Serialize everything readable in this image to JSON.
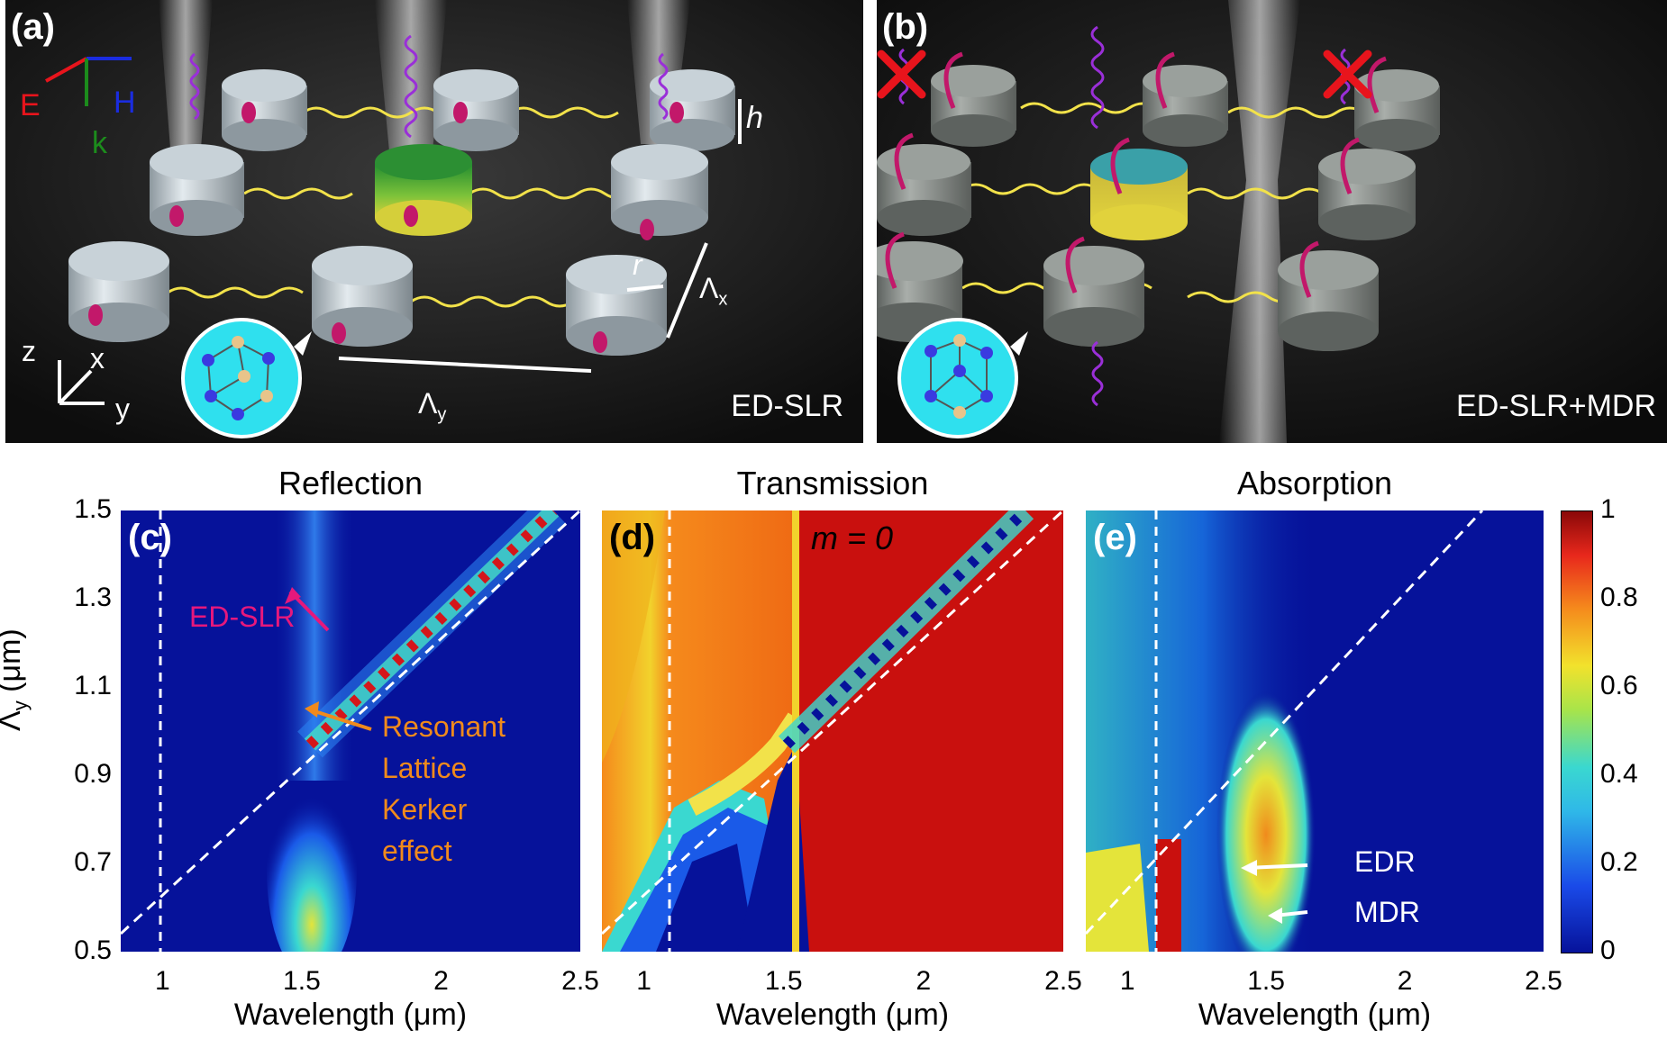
{
  "panel_a": {
    "label": "(a)",
    "mode": "ED-SLR",
    "axes": {
      "E": "E",
      "H": "H",
      "k": "k",
      "h": "h",
      "r": "r",
      "lx": "Λ",
      "lx_sub": "x",
      "ly": "Λ",
      "ly_sub": "y",
      "z": "z",
      "x": "x",
      "y": "y"
    }
  },
  "panel_b": {
    "label": "(b)",
    "mode": "ED-SLR+MDR"
  },
  "colors": {
    "yellow_wave": "#f2e24a",
    "purple_wave": "#9a2fd8",
    "cross": "#e8141c",
    "cylinder": "#b9c4cc",
    "cylinder_dark": "#8a8f8c",
    "inset_bg": "#2fe0ee",
    "arrow_pink": "#e6187c",
    "arrow_orange": "#f08a1c"
  },
  "chart_data": [
    {
      "type": "heatmap",
      "panel": "(c)",
      "title": "Reflection",
      "xlabel": "Wavelength (μm)",
      "ylabel": "Λ",
      "ylabel_sub": "y",
      "ylabel_unit": " (μm)",
      "xlim": [
        0.85,
        2.5
      ],
      "ylim": [
        0.5,
        1.5
      ],
      "xticks": [
        1,
        1.5,
        2,
        2.5
      ],
      "yticks": [
        0.5,
        0.7,
        0.9,
        1.1,
        1.3,
        1.5
      ],
      "annotations": [
        {
          "text": "ED-SLR",
          "color": "#e6187c"
        },
        {
          "text": "Resonant",
          "color": "#f08a1c"
        },
        {
          "text": "Lattice",
          "color": "#f08a1c"
        },
        {
          "text": "Kerker",
          "color": "#f08a1c"
        },
        {
          "text": "effect",
          "color": "#f08a1c"
        }
      ]
    },
    {
      "type": "heatmap",
      "panel": "(d)",
      "title": "Transmission",
      "extra": "m = 0",
      "xlabel": "Wavelength (μm)",
      "xlim": [
        0.85,
        2.5
      ],
      "ylim": [
        0.5,
        1.5
      ],
      "xticks": [
        1,
        1.5,
        2,
        2.5
      ]
    },
    {
      "type": "heatmap",
      "panel": "(e)",
      "title": "Absorption",
      "xlabel": "Wavelength (μm)",
      "xlim": [
        0.85,
        2.5
      ],
      "ylim": [
        0.5,
        1.5
      ],
      "xticks": [
        1,
        1.5,
        2,
        2.5
      ],
      "annotations": [
        {
          "text": "EDR",
          "color": "#ffffff"
        },
        {
          "text": "MDR",
          "color": "#ffffff"
        }
      ]
    }
  ],
  "colorbar": {
    "min": 0,
    "max": 1,
    "ticks": [
      "0",
      "0.2",
      "0.4",
      "0.6",
      "0.8",
      "1"
    ]
  }
}
